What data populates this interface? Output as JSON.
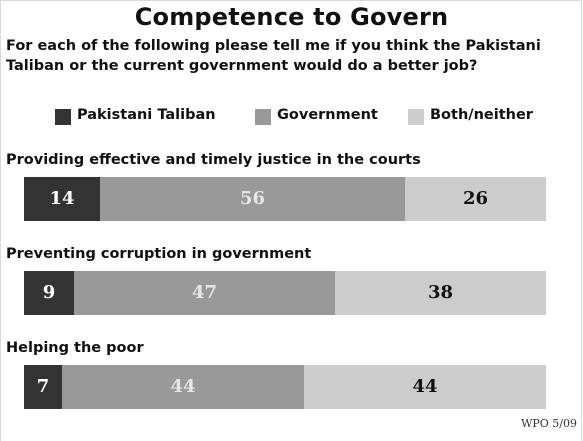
{
  "chart_data": {
    "type": "bar",
    "stacked": true,
    "orientation": "horizontal",
    "title": "Competence to Govern",
    "subtitle": "For each of the following please tell me if you think the Pakistani Taliban or the current government would do a better job?",
    "categories": [
      "Providing effective and timely justice in the courts",
      "Preventing corruption in government",
      "Helping the poor"
    ],
    "series": [
      {
        "name": "Pakistani Taliban",
        "color": "#333333",
        "label_color": "#ffffff",
        "values": [
          14,
          9,
          7
        ]
      },
      {
        "name": "Government",
        "color": "#999999",
        "label_color": "#e6e6e6",
        "values": [
          56,
          47,
          44
        ]
      },
      {
        "name": "Both/neither",
        "color": "#cccccc",
        "label_color": "#111111",
        "values": [
          26,
          38,
          44
        ]
      }
    ],
    "legend_position": "top",
    "source": "WPO 5/09"
  }
}
